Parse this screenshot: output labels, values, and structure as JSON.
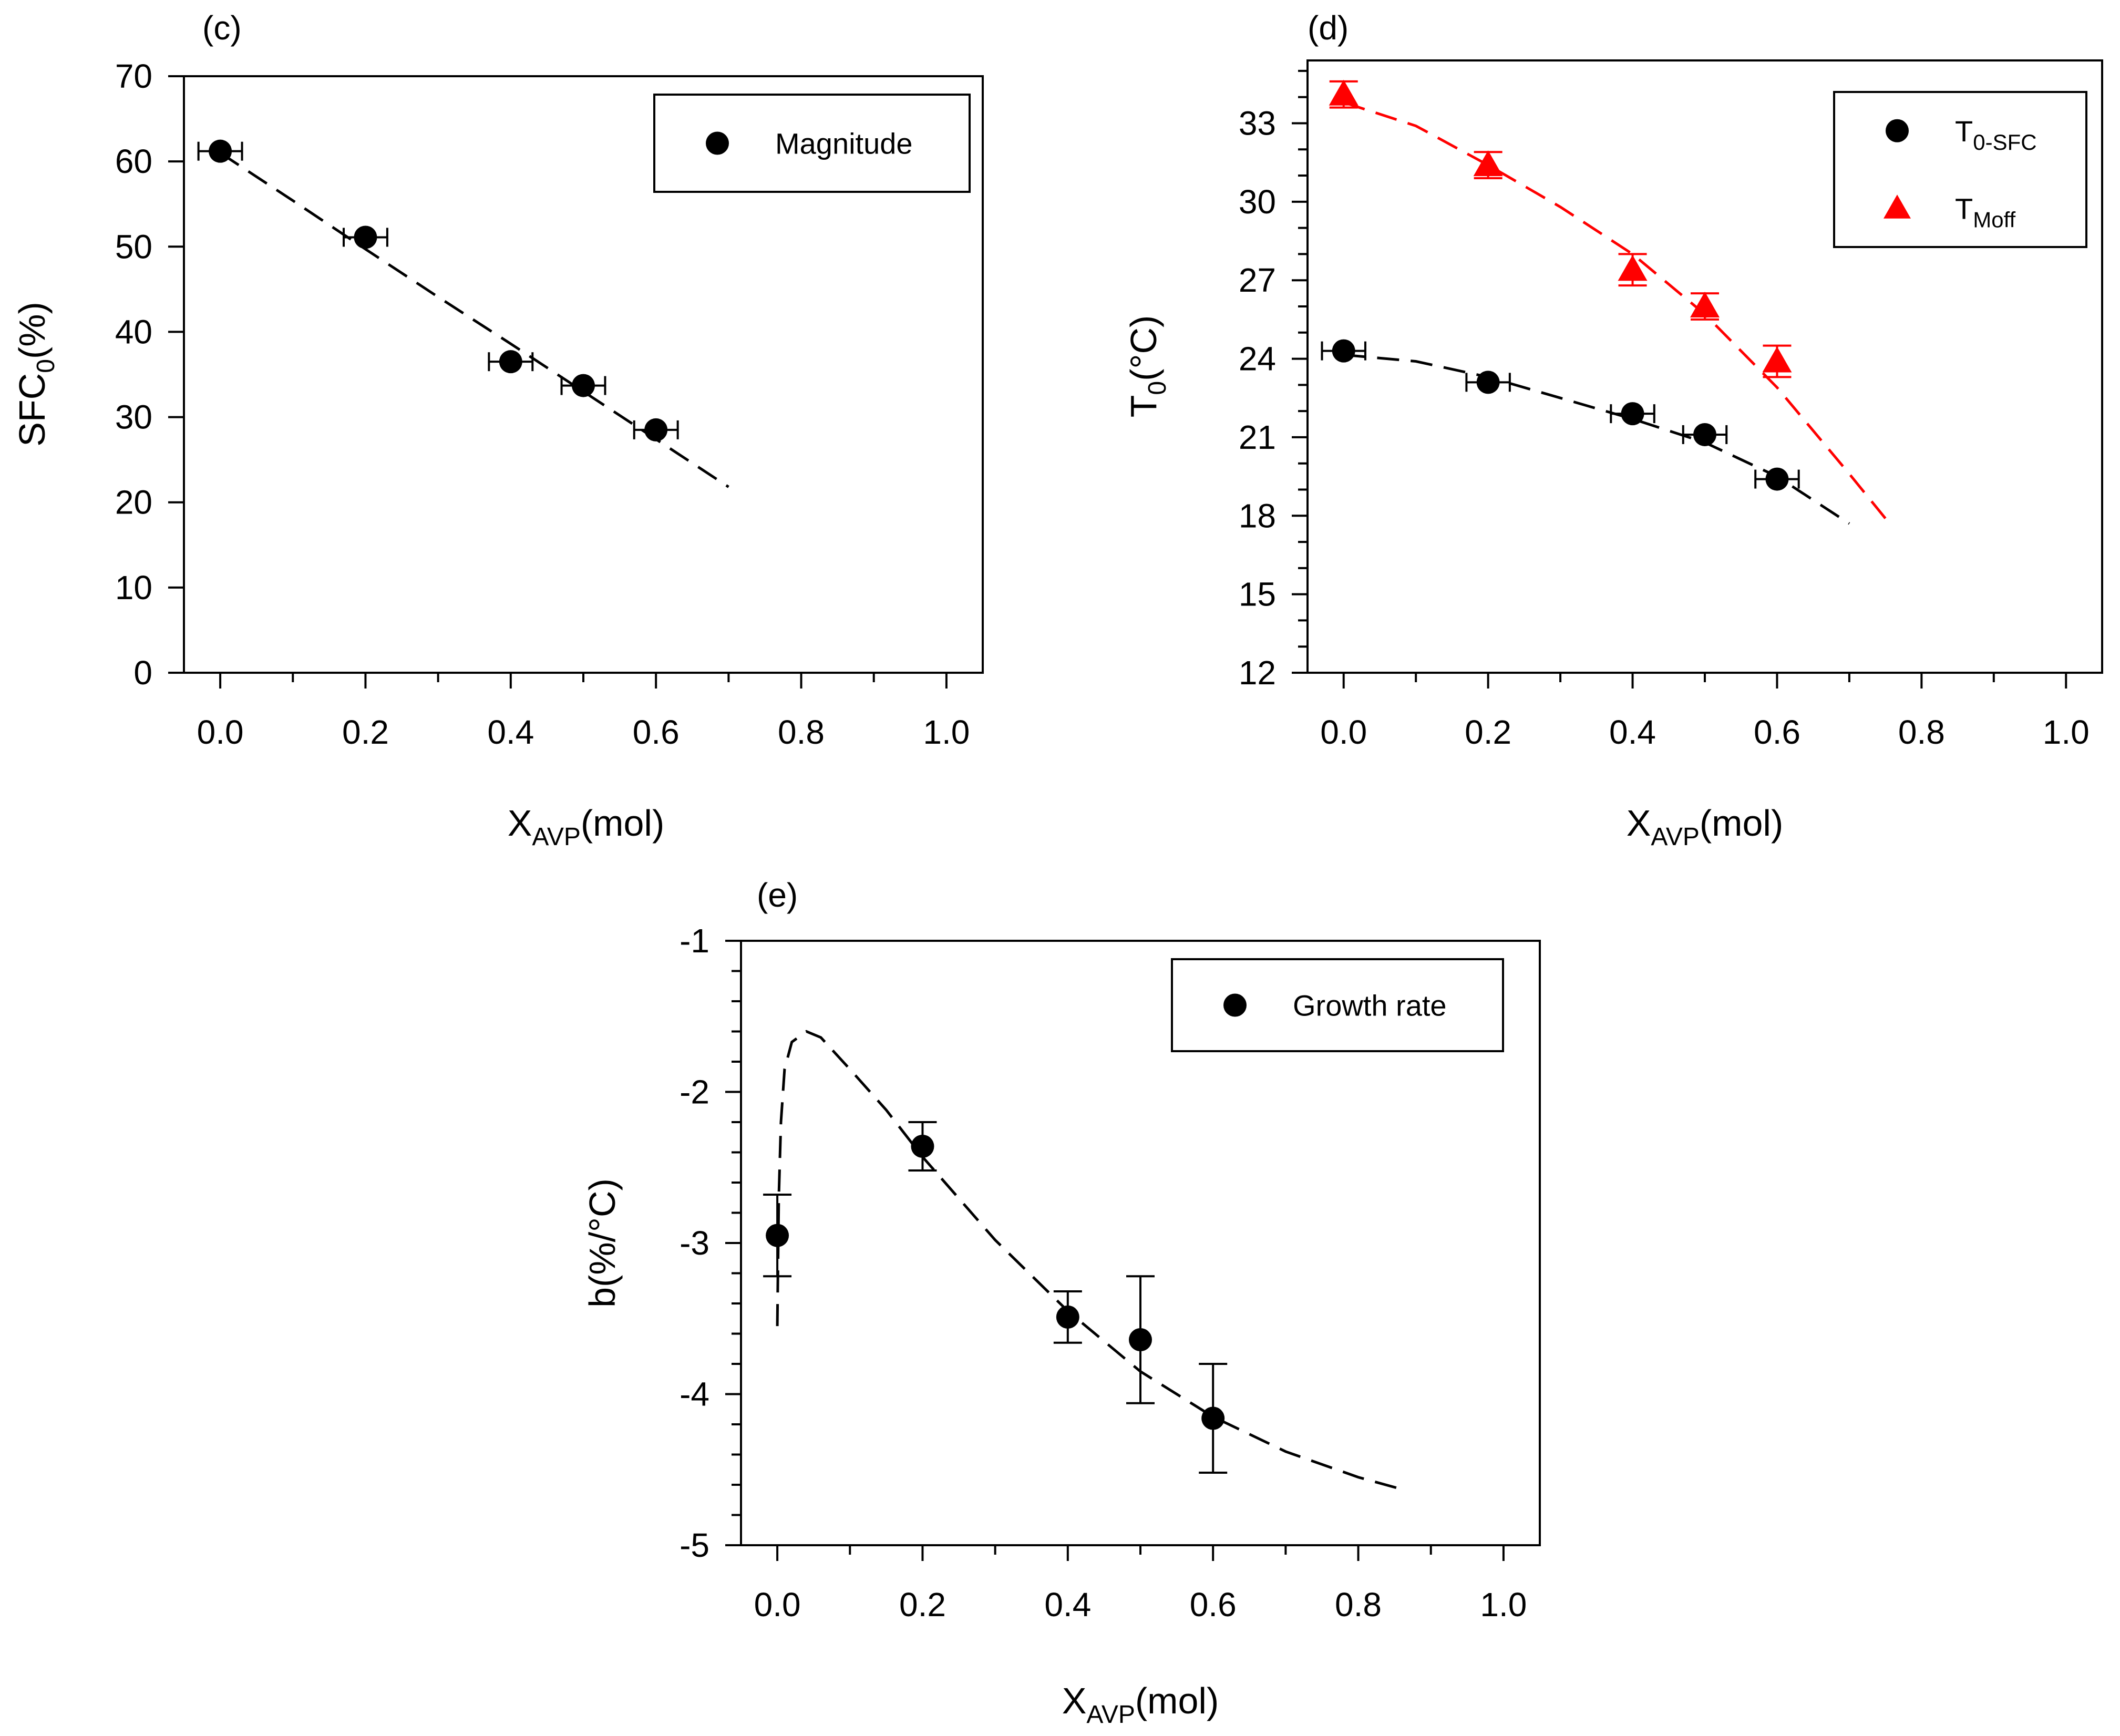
{
  "figure": {
    "panels": [
      {
        "id": "c",
        "panel_label": "(c)",
        "ylabel": {
          "main": "SFC",
          "sub": "0",
          "suffix": "(%)"
        },
        "xlabel": {
          "main": "X",
          "sub": "AVP",
          "suffix": "(mol)"
        },
        "legend": [
          {
            "marker": "circle",
            "color": "#000000",
            "label": "Magnitude",
            "sub": ""
          }
        ]
      },
      {
        "id": "d",
        "panel_label": "(d)",
        "ylabel": {
          "main": "T",
          "sub": "0",
          "suffix": "(°C)"
        },
        "xlabel": {
          "main": "X",
          "sub": "AVP",
          "suffix": "(mol)"
        },
        "legend": [
          {
            "marker": "circle",
            "color": "#000000",
            "label": "T",
            "sub": "0-SFC"
          },
          {
            "marker": "triangle",
            "color": "#ff0000",
            "label": "T",
            "sub": "Moff"
          }
        ]
      },
      {
        "id": "e",
        "panel_label": "(e)",
        "ylabel": {
          "main": "b(%/°C)",
          "sub": "",
          "suffix": ""
        },
        "xlabel": {
          "main": "X",
          "sub": "AVP",
          "suffix": "(mol)"
        },
        "legend": [
          {
            "marker": "circle",
            "color": "#000000",
            "label": "Growth rate",
            "sub": ""
          }
        ]
      }
    ]
  },
  "chart_data": [
    {
      "panel": "c",
      "type": "scatter",
      "title": "",
      "xlabel": "XAVP(mol)",
      "ylabel": "SFC0(%)",
      "xlim": [
        -0.05,
        1.05
      ],
      "ylim": [
        0,
        70
      ],
      "xticks": [
        0.0,
        0.2,
        0.4,
        0.6,
        0.8,
        1.0
      ],
      "xticks_minor": [
        0.1,
        0.3,
        0.5,
        0.7,
        0.9
      ],
      "yticks": [
        0,
        10,
        20,
        30,
        40,
        50,
        60,
        70
      ],
      "yticks_minor": [],
      "xtick_labels": [
        "0.0",
        "0.2",
        "0.4",
        "0.6",
        "0.8",
        "1.0"
      ],
      "ytick_labels": [
        "0",
        "10",
        "20",
        "30",
        "40",
        "50",
        "60",
        "70"
      ],
      "legend_position": "top-right",
      "series": [
        {
          "name": "Magnitude",
          "marker": "circle",
          "color": "#000000",
          "points": [
            {
              "x": 0.0,
              "y": 61.2,
              "xerr": 0.03
            },
            {
              "x": 0.2,
              "y": 51.1,
              "xerr": 0.03
            },
            {
              "x": 0.4,
              "y": 36.5,
              "xerr": 0.03
            },
            {
              "x": 0.5,
              "y": 33.7,
              "xerr": 0.03
            },
            {
              "x": 0.6,
              "y": 28.5,
              "xerr": 0.03
            }
          ],
          "fit": {
            "style": "dashed",
            "color": "#000000",
            "x": [
              0.0,
              0.1,
              0.2,
              0.3,
              0.4,
              0.5,
              0.6,
              0.7
            ],
            "y": [
              61.0,
              55.4,
              49.7,
              44.1,
              38.6,
              33.0,
              27.4,
              21.8
            ]
          }
        }
      ]
    },
    {
      "panel": "d",
      "type": "scatter",
      "title": "",
      "xlabel": "XAVP(mol)",
      "ylabel": "T0(°C)",
      "xlim": [
        -0.05,
        1.05
      ],
      "ylim": [
        12,
        35.4
      ],
      "xticks": [
        0.0,
        0.2,
        0.4,
        0.6,
        0.8,
        1.0
      ],
      "xticks_minor": [
        0.1,
        0.3,
        0.5,
        0.7,
        0.9
      ],
      "yticks": [
        12,
        15,
        18,
        21,
        24,
        27,
        30,
        33
      ],
      "yticks_minor": [
        13,
        14,
        16,
        17,
        19,
        20,
        22,
        23,
        25,
        26,
        28,
        29,
        31,
        32,
        34,
        35
      ],
      "xtick_labels": [
        "0.0",
        "0.2",
        "0.4",
        "0.6",
        "0.8",
        "1.0"
      ],
      "ytick_labels": [
        "12",
        "15",
        "18",
        "21",
        "24",
        "27",
        "30",
        "33"
      ],
      "legend_position": "top-right",
      "series": [
        {
          "name": "T0-SFC",
          "marker": "circle",
          "color": "#000000",
          "points": [
            {
              "x": 0.0,
              "y": 24.3,
              "xerr": 0.03
            },
            {
              "x": 0.2,
              "y": 23.1,
              "xerr": 0.03
            },
            {
              "x": 0.4,
              "y": 21.9,
              "xerr": 0.03
            },
            {
              "x": 0.5,
              "y": 21.1,
              "xerr": 0.03
            },
            {
              "x": 0.6,
              "y": 19.4,
              "xerr": 0.03
            }
          ],
          "fit": {
            "style": "dashed",
            "color": "#000000",
            "x": [
              0.0,
              0.1,
              0.2,
              0.3,
              0.4,
              0.5,
              0.6,
              0.7
            ],
            "y": [
              24.15,
              23.9,
              23.3,
              22.5,
              21.7,
              20.8,
              19.5,
              17.7
            ]
          }
        },
        {
          "name": "TMoff",
          "marker": "triangle",
          "color": "#ff0000",
          "points": [
            {
              "x": 0.0,
              "y": 34.1,
              "yerr": 0.5
            },
            {
              "x": 0.2,
              "y": 31.4,
              "yerr": 0.5
            },
            {
              "x": 0.4,
              "y": 27.4,
              "yerr": 0.6
            },
            {
              "x": 0.5,
              "y": 26.0,
              "yerr": 0.5
            },
            {
              "x": 0.6,
              "y": 23.9,
              "yerr": 0.6
            }
          ],
          "fit": {
            "style": "dashed",
            "color": "#ff0000",
            "x": [
              0.0,
              0.1,
              0.2,
              0.3,
              0.4,
              0.5,
              0.6,
              0.7,
              0.75
            ],
            "y": [
              33.8,
              32.9,
              31.4,
              29.8,
              28.0,
              25.7,
              22.9,
              19.6,
              17.9
            ]
          }
        }
      ]
    },
    {
      "panel": "e",
      "type": "scatter",
      "title": "",
      "xlabel": "XAVP(mol)",
      "ylabel": "b(%/°C)",
      "xlim": [
        -0.05,
        1.05
      ],
      "ylim": [
        -5,
        -1
      ],
      "xticks": [
        0.0,
        0.2,
        0.4,
        0.6,
        0.8,
        1.0
      ],
      "xticks_minor": [
        0.1,
        0.3,
        0.5,
        0.7,
        0.9
      ],
      "yticks": [
        -5,
        -4,
        -3,
        -2,
        -1
      ],
      "yticks_minor": [
        -4.8,
        -4.6,
        -4.4,
        -4.2,
        -3.8,
        -3.6,
        -3.4,
        -3.2,
        -2.8,
        -2.6,
        -2.4,
        -2.2,
        -1.8,
        -1.6,
        -1.4,
        -1.2
      ],
      "xtick_labels": [
        "0.0",
        "0.2",
        "0.4",
        "0.6",
        "0.8",
        "1.0"
      ],
      "ytick_labels": [
        "-5",
        "-4",
        "-3",
        "-2",
        "-1"
      ],
      "legend_position": "top-right",
      "series": [
        {
          "name": "Growth rate",
          "marker": "circle",
          "color": "#000000",
          "points": [
            {
              "x": 0.0,
              "y": -2.95,
              "yerr": 0.27
            },
            {
              "x": 0.2,
              "y": -2.36,
              "yerr": 0.16
            },
            {
              "x": 0.4,
              "y": -3.49,
              "yerr": 0.17
            },
            {
              "x": 0.5,
              "y": -3.64,
              "yerr": 0.42
            },
            {
              "x": 0.6,
              "y": -4.16,
              "yerr": 0.36
            }
          ],
          "fit": {
            "style": "dashed",
            "color": "#000000",
            "x": [
              0.0,
              0.002,
              0.005,
              0.01,
              0.02,
              0.04,
              0.06,
              0.1,
              0.15,
              0.2,
              0.3,
              0.4,
              0.5,
              0.6,
              0.7,
              0.8,
              0.86
            ],
            "y": [
              -3.55,
              -2.7,
              -2.2,
              -1.85,
              -1.67,
              -1.6,
              -1.64,
              -1.85,
              -2.12,
              -2.43,
              -2.98,
              -3.45,
              -3.85,
              -4.15,
              -4.38,
              -4.55,
              -4.63
            ]
          }
        }
      ]
    }
  ]
}
